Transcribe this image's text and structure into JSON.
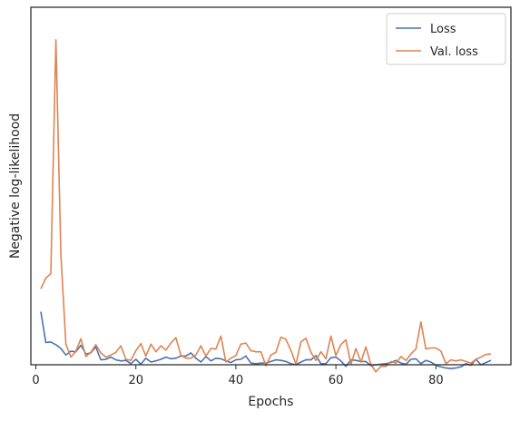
{
  "chart_data": {
    "type": "line",
    "xlabel": "Epochs",
    "ylabel": "Negative log-likelihood",
    "xlim": [
      -1,
      95
    ],
    "ylim": [
      -2,
      64
    ],
    "xticks": [
      0,
      20,
      40,
      60,
      80
    ],
    "yticks_shown": false,
    "grid": false,
    "legend_position": "top-right",
    "series": [
      {
        "name": "Loss",
        "color": "#4c72b0",
        "x": [
          1,
          2,
          3,
          4,
          5,
          6,
          7,
          8,
          9,
          10,
          11,
          12,
          13,
          14,
          15,
          16,
          17,
          18,
          19,
          20,
          21,
          22,
          23,
          24,
          25,
          26,
          27,
          28,
          29,
          30,
          31,
          32,
          33,
          34,
          35,
          36,
          37,
          38,
          39,
          40,
          41,
          42,
          43,
          44,
          45,
          46,
          47,
          48,
          49,
          50,
          51,
          52,
          53,
          54,
          55,
          56,
          57,
          58,
          59,
          60,
          61,
          62,
          63,
          64,
          65,
          66,
          67,
          68,
          69,
          70,
          71,
          72,
          73,
          74,
          75,
          76,
          77,
          78,
          79,
          80,
          81,
          82,
          83,
          84,
          85,
          86,
          87,
          88,
          89,
          90,
          91
        ],
        "values": [
          7.8,
          2.1,
          2.2,
          1.7,
          1.0,
          -0.2,
          0.5,
          0.4,
          1.6,
          0.0,
          0.2,
          1.3,
          -1.1,
          -1.0,
          -0.6,
          -1.1,
          -1.3,
          -1.2,
          -1.8,
          -1.0,
          -1.9,
          -0.8,
          -1.5,
          -1.3,
          -1.0,
          -0.6,
          -0.9,
          -0.8,
          -0.4,
          -0.4,
          0.2,
          -0.8,
          -1.5,
          -0.5,
          -1.3,
          -0.8,
          -0.9,
          -1.3,
          -1.6,
          -1.1,
          -1.0,
          -0.4,
          -1.7,
          -1.8,
          -1.7,
          -1.7,
          -1.4,
          -1.1,
          -1.2,
          -1.4,
          -1.8,
          -2.0,
          -1.5,
          -1.1,
          -1.1,
          -0.3,
          -1.8,
          -1.8,
          -0.7,
          -0.6,
          -1.3,
          -2.3,
          -1.1,
          -1.2,
          -1.4,
          -1.4,
          -2.2,
          -2.0,
          -1.9,
          -1.8,
          -1.6,
          -1.2,
          -1.7,
          -1.9,
          -1.0,
          -0.9,
          -1.8,
          -1.2,
          -1.5,
          -2.1,
          -2.4,
          -2.6,
          -2.7,
          -2.6,
          -2.4,
          -1.8,
          -2.1,
          -1.0,
          -2.0,
          -1.6,
          -1.2
        ]
      },
      {
        "name": "Val. loss",
        "color": "#dd8452",
        "x": [
          1,
          2,
          3,
          4,
          5,
          6,
          7,
          8,
          9,
          10,
          11,
          12,
          13,
          14,
          15,
          16,
          17,
          18,
          19,
          20,
          21,
          22,
          23,
          24,
          25,
          26,
          27,
          28,
          29,
          30,
          31,
          32,
          33,
          34,
          35,
          36,
          37,
          38,
          39,
          40,
          41,
          42,
          43,
          44,
          45,
          46,
          47,
          48,
          49,
          50,
          51,
          52,
          53,
          54,
          55,
          56,
          57,
          58,
          59,
          60,
          61,
          62,
          63,
          64,
          65,
          66,
          67,
          68,
          69,
          70,
          71,
          72,
          73,
          74,
          75,
          76,
          77,
          78,
          79,
          80,
          81,
          82,
          83,
          84,
          85,
          86,
          87,
          88,
          89,
          90,
          91
        ],
        "values": [
          12.0,
          14.0,
          14.8,
          58.0,
          18.3,
          1.8,
          -0.6,
          0.5,
          2.8,
          -0.5,
          0.3,
          1.7,
          0.2,
          -0.6,
          -0.2,
          0.3,
          1.5,
          -1.0,
          -1.2,
          0.6,
          1.9,
          -0.4,
          1.8,
          0.4,
          1.5,
          0.7,
          2.0,
          3.0,
          -0.2,
          -0.8,
          -0.8,
          -0.2,
          1.5,
          -0.4,
          1.0,
          0.9,
          3.3,
          -1.5,
          -0.8,
          -0.3,
          1.8,
          2.0,
          0.6,
          0.4,
          0.4,
          -2.2,
          -0.2,
          0.3,
          3.1,
          2.7,
          0.7,
          -1.9,
          2.2,
          2.9,
          0.3,
          -1.2,
          0.4,
          -0.9,
          3.3,
          -0.3,
          1.7,
          2.6,
          -1.9,
          1.0,
          -1.5,
          1.3,
          -2.0,
          -3.3,
          -2.3,
          -2.3,
          -1.4,
          -1.7,
          -0.5,
          -1.2,
          0.0,
          0.9,
          5.9,
          0.9,
          1.1,
          1.1,
          0.5,
          -1.8,
          -1.1,
          -1.3,
          -1.1,
          -1.4,
          -1.7,
          -1.0,
          -0.6,
          -0.1,
          0.0
        ]
      }
    ]
  }
}
